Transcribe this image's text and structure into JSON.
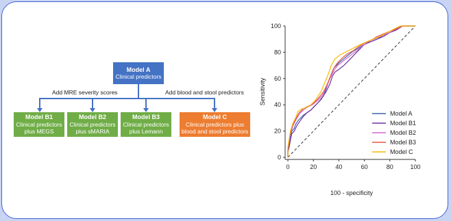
{
  "flow": {
    "model_a": {
      "title": "Model A",
      "subtitle": "Clinical predictors"
    },
    "branch_left_label": "Add MRE severity scores",
    "branch_right_label": "Add blood and stool predictors",
    "model_b1": {
      "title": "Model B1",
      "line1": "Clinical predictors",
      "line2": "plus MEGS"
    },
    "model_b2": {
      "title": "Model B2",
      "line1": "Clinical predictors",
      "line2": "plus sMARIA"
    },
    "model_b3": {
      "title": "Model B3",
      "line1": "Clinical predictors",
      "line2": "plus Lemann"
    },
    "model_c": {
      "title": "Model C",
      "line1": "Clinical predictors plus",
      "line2": "blood and stool predictors"
    },
    "colors": {
      "model_a": "#4472c4",
      "model_b": "#70ad47",
      "model_c": "#ed7d31",
      "connector": "#4472c4"
    }
  },
  "chart_data": {
    "type": "line",
    "xlabel": "100 - specificity",
    "ylabel": "Sensitivity",
    "xlim": [
      0,
      100
    ],
    "ylim": [
      0,
      100
    ],
    "xticks": [
      "0",
      "20",
      "40",
      "60",
      "80",
      "100"
    ],
    "yticks": [
      "0",
      "20",
      "40",
      "60",
      "80",
      "100"
    ],
    "grid": false,
    "legend_position": "bottom-right",
    "reference_line": {
      "style": "dashed",
      "points": [
        [
          0,
          0
        ],
        [
          100,
          100
        ]
      ]
    },
    "series": [
      {
        "name": "Model A",
        "color": "#3b63a8",
        "points": [
          [
            0,
            0
          ],
          [
            0,
            5
          ],
          [
            1,
            10
          ],
          [
            2,
            15
          ],
          [
            3,
            20
          ],
          [
            5,
            22
          ],
          [
            6,
            25
          ],
          [
            8,
            28
          ],
          [
            10,
            30
          ],
          [
            12,
            32
          ],
          [
            15,
            34
          ],
          [
            18,
            36
          ],
          [
            20,
            38
          ],
          [
            24,
            42
          ],
          [
            28,
            47
          ],
          [
            30,
            52
          ],
          [
            32,
            58
          ],
          [
            34,
            63
          ],
          [
            36,
            68
          ],
          [
            40,
            72
          ],
          [
            45,
            76
          ],
          [
            50,
            80
          ],
          [
            55,
            83
          ],
          [
            60,
            86
          ],
          [
            65,
            88
          ],
          [
            70,
            90
          ],
          [
            75,
            93
          ],
          [
            80,
            95
          ],
          [
            85,
            97
          ],
          [
            90,
            100
          ],
          [
            100,
            100
          ]
        ]
      },
      {
        "name": "Model B1",
        "color": "#7030a0",
        "points": [
          [
            0,
            0
          ],
          [
            0,
            4
          ],
          [
            1,
            8
          ],
          [
            2,
            13
          ],
          [
            3,
            18
          ],
          [
            5,
            20
          ],
          [
            7,
            24
          ],
          [
            9,
            27
          ],
          [
            12,
            31
          ],
          [
            15,
            34
          ],
          [
            18,
            36
          ],
          [
            22,
            40
          ],
          [
            26,
            44
          ],
          [
            30,
            50
          ],
          [
            33,
            56
          ],
          [
            35,
            62
          ],
          [
            37,
            65
          ],
          [
            40,
            67
          ],
          [
            44,
            70
          ],
          [
            48,
            74
          ],
          [
            52,
            78
          ],
          [
            56,
            82
          ],
          [
            60,
            86
          ],
          [
            65,
            88
          ],
          [
            70,
            90
          ],
          [
            75,
            92
          ],
          [
            80,
            95
          ],
          [
            85,
            97
          ],
          [
            90,
            100
          ],
          [
            100,
            100
          ]
        ]
      },
      {
        "name": "Model B2",
        "color": "#cc66cc",
        "points": [
          [
            0,
            0
          ],
          [
            0,
            6
          ],
          [
            1,
            12
          ],
          [
            2,
            18
          ],
          [
            4,
            24
          ],
          [
            6,
            28
          ],
          [
            9,
            33
          ],
          [
            12,
            36
          ],
          [
            15,
            38
          ],
          [
            19,
            40
          ],
          [
            23,
            43
          ],
          [
            27,
            47
          ],
          [
            30,
            53
          ],
          [
            33,
            60
          ],
          [
            36,
            66
          ],
          [
            39,
            70
          ],
          [
            43,
            73
          ],
          [
            47,
            76
          ],
          [
            51,
            79
          ],
          [
            55,
            82
          ],
          [
            60,
            86
          ],
          [
            65,
            89
          ],
          [
            70,
            91
          ],
          [
            75,
            93
          ],
          [
            80,
            95
          ],
          [
            85,
            98
          ],
          [
            90,
            100
          ],
          [
            100,
            100
          ]
        ]
      },
      {
        "name": "Model B3",
        "color": "#e8534a",
        "points": [
          [
            0,
            0
          ],
          [
            0,
            7
          ],
          [
            1,
            13
          ],
          [
            2,
            19
          ],
          [
            4,
            25
          ],
          [
            6,
            29
          ],
          [
            9,
            34
          ],
          [
            12,
            37
          ],
          [
            16,
            39
          ],
          [
            20,
            41
          ],
          [
            24,
            45
          ],
          [
            28,
            50
          ],
          [
            31,
            56
          ],
          [
            34,
            63
          ],
          [
            36,
            68
          ],
          [
            39,
            72
          ],
          [
            43,
            76
          ],
          [
            47,
            79
          ],
          [
            51,
            81
          ],
          [
            55,
            84
          ],
          [
            60,
            87
          ],
          [
            65,
            89
          ],
          [
            70,
            92
          ],
          [
            75,
            94
          ],
          [
            80,
            96
          ],
          [
            86,
            98
          ],
          [
            90,
            100
          ],
          [
            100,
            100
          ]
        ]
      },
      {
        "name": "Model C",
        "color": "#f5b800",
        "points": [
          [
            0,
            0
          ],
          [
            0,
            8
          ],
          [
            1,
            14
          ],
          [
            2,
            20
          ],
          [
            4,
            26
          ],
          [
            6,
            30
          ],
          [
            8,
            35
          ],
          [
            11,
            37
          ],
          [
            15,
            38
          ],
          [
            18,
            40
          ],
          [
            22,
            44
          ],
          [
            26,
            50
          ],
          [
            29,
            57
          ],
          [
            32,
            64
          ],
          [
            34,
            70
          ],
          [
            37,
            75
          ],
          [
            41,
            78
          ],
          [
            45,
            80
          ],
          [
            49,
            82
          ],
          [
            53,
            84
          ],
          [
            57,
            86
          ],
          [
            62,
            88
          ],
          [
            67,
            90
          ],
          [
            72,
            92
          ],
          [
            78,
            95
          ],
          [
            84,
            98
          ],
          [
            88,
            100
          ],
          [
            100,
            100
          ]
        ]
      }
    ]
  }
}
